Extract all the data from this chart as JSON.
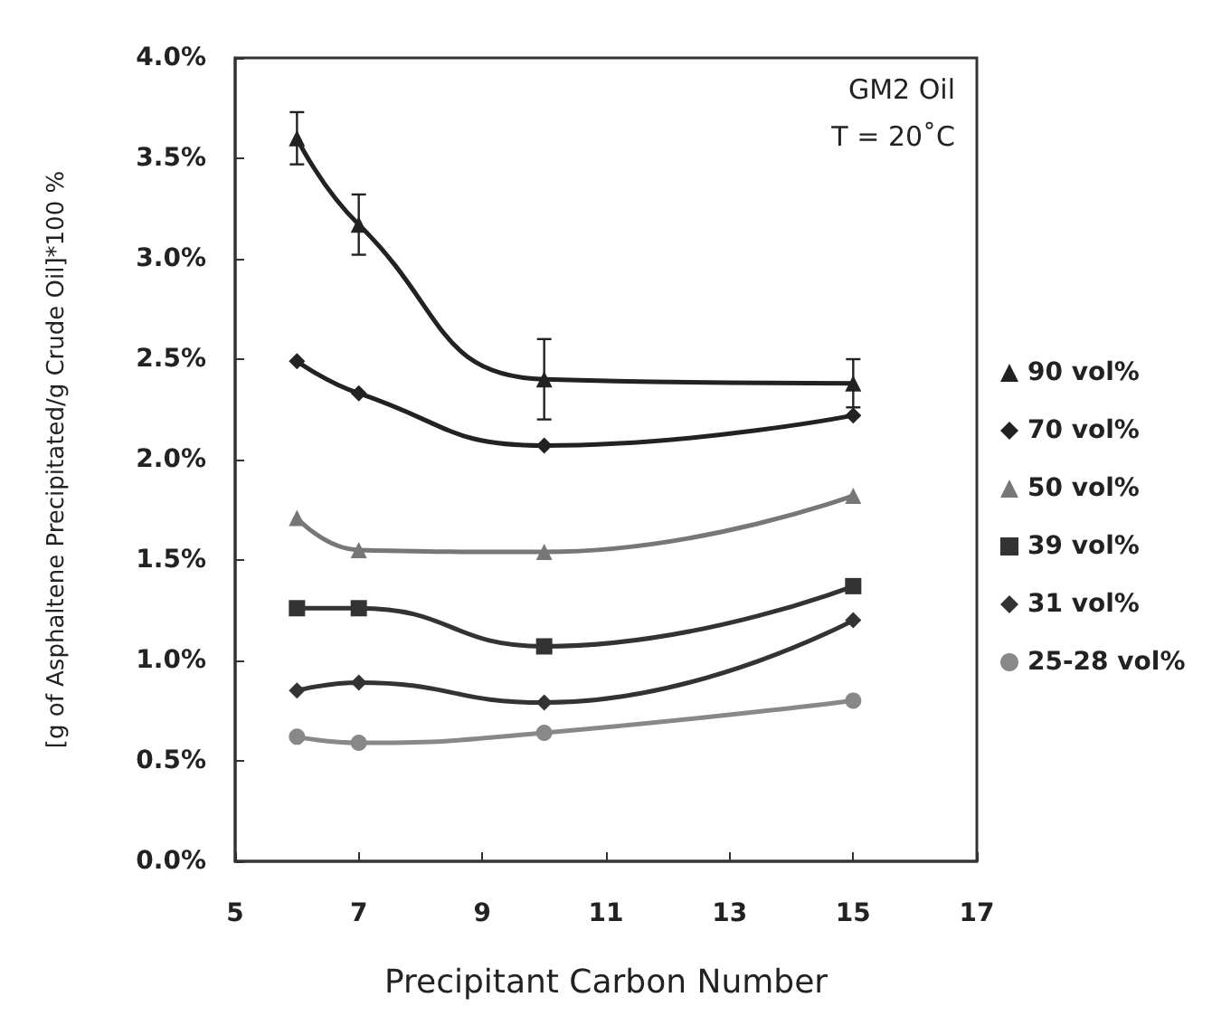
{
  "chart_data": {
    "type": "line",
    "xlabel": "Precipitant Carbon Number",
    "ylabel": "[g of Asphaltene Precipitated/g Crude Oil]*100 %",
    "annotations": [
      "GM2 Oil",
      "T = 20˚C"
    ],
    "xlim": [
      5,
      17
    ],
    "xticks": [
      5,
      7,
      9,
      11,
      13,
      15,
      17
    ],
    "ylim": [
      0,
      4
    ],
    "yticks": [
      {
        "value": 0,
        "label": "0.0%"
      },
      {
        "value": 0.5,
        "label": "0.5%"
      },
      {
        "value": 1,
        "label": "1.0%"
      },
      {
        "value": 1.5,
        "label": "1.5%"
      },
      {
        "value": 2,
        "label": "2.0%"
      },
      {
        "value": 2.5,
        "label": "2.5%"
      },
      {
        "value": 3,
        "label": "3.0%"
      },
      {
        "value": 3.5,
        "label": "3.5%"
      },
      {
        "value": 4,
        "label": "4.0%"
      }
    ],
    "x": [
      6,
      7,
      10,
      15
    ],
    "grid": false,
    "legend": "right",
    "series": [
      {
        "name": "90 vol%",
        "color": "#222222",
        "marker": "triangle",
        "values": [
          3.6,
          3.17,
          2.4,
          2.38
        ],
        "errors": [
          0.13,
          0.15,
          0.2,
          0.12
        ]
      },
      {
        "name": "70 vol%",
        "color": "#222222",
        "marker": "diamond",
        "values": [
          2.49,
          2.33,
          2.07,
          2.22
        ]
      },
      {
        "name": "50 vol%",
        "color": "#777777",
        "marker": "triangle",
        "values": [
          1.71,
          1.55,
          1.54,
          1.82
        ]
      },
      {
        "name": "39 vol%",
        "color": "#333333",
        "marker": "square",
        "values": [
          1.26,
          1.26,
          1.07,
          1.37
        ]
      },
      {
        "name": "31 vol%",
        "color": "#333333",
        "marker": "diamond",
        "values": [
          0.85,
          0.89,
          0.79,
          1.2
        ]
      },
      {
        "name": "25-28 vol%",
        "color": "#888888",
        "marker": "circle",
        "values": [
          0.62,
          0.59,
          0.64,
          0.8
        ]
      }
    ]
  }
}
